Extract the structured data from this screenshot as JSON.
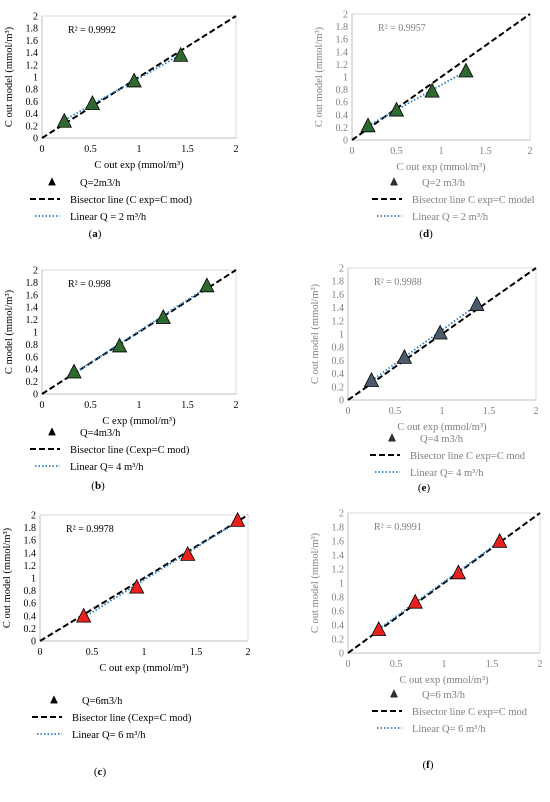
{
  "chart_data": [
    {
      "id": "a",
      "panel_label": "(a)",
      "bold_letter": "a",
      "type": "scatter",
      "x": [
        0.23,
        0.52,
        0.95,
        1.43
      ],
      "y": [
        0.28,
        0.57,
        0.94,
        1.36
      ],
      "xlim": [
        0,
        2
      ],
      "ylim": [
        0,
        2
      ],
      "xticks": [
        "0",
        "0.5",
        "1",
        "1.5",
        "2"
      ],
      "yticks": [
        "0",
        "0.2",
        "0.4",
        "0.6",
        "0.8",
        "1",
        "1.2",
        "1.4",
        "1.6",
        "1.8",
        "2"
      ],
      "xlabel": "C out exp (mmol/m³)",
      "ylabel": "C out model (mmol/m³)",
      "r2": "R² = 0.9992",
      "marker_color": "#2e6a30",
      "text_color": "#000000",
      "legend": [
        "Q=2m3/h",
        "Bisector line (C exp=C mod)",
        "Linear Q = 2 m³/h"
      ]
    },
    {
      "id": "d",
      "panel_label": "(d)",
      "bold_letter": "d",
      "type": "scatter",
      "x": [
        0.18,
        0.5,
        0.9,
        1.28
      ],
      "y": [
        0.23,
        0.48,
        0.78,
        1.1
      ],
      "xlim": [
        0,
        2
      ],
      "ylim": [
        0,
        2
      ],
      "xticks": [
        "0",
        "0.5",
        "1",
        "1.5",
        "2"
      ],
      "yticks": [
        "0",
        "0.2",
        "0.4",
        "0.6",
        "0.8",
        "1",
        "1.2",
        "1.4",
        "1.6",
        "1.8",
        "2"
      ],
      "xlabel": "C out exp (mmol/m³)",
      "ylabel": "C out model (mmol/m³)",
      "r2": "R² = 0.9957",
      "marker_color": "#2e6a30",
      "text_color": "#808080",
      "legend": [
        "Q=2 m3/h",
        "Bisector line C exp=C model",
        "Linear Q = 2 m³/h"
      ]
    },
    {
      "id": "b",
      "panel_label": "(b)",
      "bold_letter": "b",
      "type": "scatter",
      "x": [
        0.33,
        0.8,
        1.25,
        1.7
      ],
      "y": [
        0.36,
        0.78,
        1.24,
        1.75
      ],
      "xlim": [
        0,
        2
      ],
      "ylim": [
        0,
        2
      ],
      "xticks": [
        "0",
        "0.5",
        "1",
        "1.5",
        "2"
      ],
      "yticks": [
        "0",
        "0.2",
        "0.4",
        "0.6",
        "0.8",
        "1",
        "1.2",
        "1.4",
        "1.6",
        "1.8",
        "2"
      ],
      "xlabel": "C exp (mmol/m³)",
      "ylabel": "C model (mmol/m³)",
      "r2": "R² = 0.998",
      "marker_color": "#2e6a30",
      "text_color": "#000000",
      "legend": [
        "Q=4m3/h",
        "Bisector line (Cexp=C mod)",
        "Linear Q= 4 m³/h"
      ]
    },
    {
      "id": "e",
      "panel_label": "(e)",
      "bold_letter": "e",
      "type": "scatter",
      "x": [
        0.25,
        0.6,
        0.98,
        1.37
      ],
      "y": [
        0.3,
        0.65,
        1.02,
        1.45
      ],
      "xlim": [
        0,
        2
      ],
      "ylim": [
        0,
        2
      ],
      "xticks": [
        "0",
        "0.5",
        "1",
        "1.5",
        "2"
      ],
      "yticks": [
        "0",
        "0.2",
        "0.4",
        "0.6",
        "0.8",
        "1",
        "1.2",
        "1.4",
        "1.6",
        "1.8",
        "2"
      ],
      "xlabel": "C out exp (mmol/m³)",
      "ylabel": "C out model (mmol/m³)",
      "r2": "R² = 0.9988",
      "marker_color": "#4e5a6c",
      "text_color": "#808080",
      "legend": [
        "Q=4 m3/h",
        "Bisector line C exp=C mod",
        "Linear Q= 4 m³/h"
      ]
    },
    {
      "id": "c",
      "panel_label": "(c)",
      "bold_letter": "c",
      "type": "scatter",
      "x": [
        0.42,
        0.93,
        1.42,
        1.9
      ],
      "y": [
        0.4,
        0.86,
        1.38,
        1.92
      ],
      "xlim": [
        0,
        2
      ],
      "ylim": [
        0,
        2
      ],
      "xticks": [
        "0",
        "0.5",
        "1",
        "1.5",
        "2"
      ],
      "yticks": [
        "0",
        "0.2",
        "0.4",
        "0.6",
        "0.8",
        "1",
        "1.2",
        "1.4",
        "1.6",
        "1.8",
        "2"
      ],
      "xlabel": "C out exp (mmol/m³)",
      "ylabel": "C out model (mmol/m³)",
      "r2": "R² = 0.9978",
      "marker_color": "#e8211f",
      "text_color": "#000000",
      "legend": [
        "Q=6m3/h",
        "Bisector line (Cexp=C mod)",
        "Linear Q= 6 m³/h"
      ]
    },
    {
      "id": "f",
      "panel_label": "(f)",
      "bold_letter": "f",
      "type": "scatter",
      "x": [
        0.32,
        0.7,
        1.15,
        1.58
      ],
      "y": [
        0.34,
        0.73,
        1.15,
        1.6
      ],
      "xlim": [
        0,
        2
      ],
      "ylim": [
        0,
        2
      ],
      "xticks": [
        "0",
        "0.5",
        "1",
        "1.5",
        "2"
      ],
      "yticks": [
        "0",
        "0.2",
        "0.4",
        "0.6",
        "0.8",
        "1",
        "1.2",
        "1.4",
        "1.6",
        "1.8",
        "2"
      ],
      "xlabel": "C out exp (mmol/m³)",
      "ylabel": "C out model (mmol/m³)",
      "r2": "R² = 0.9991",
      "marker_color": "#e8211f",
      "text_color": "#808080",
      "legend": [
        "Q=6 m3/h",
        "Bisector line C exp=C mod",
        "Linear Q= 6 m³/h"
      ]
    }
  ]
}
